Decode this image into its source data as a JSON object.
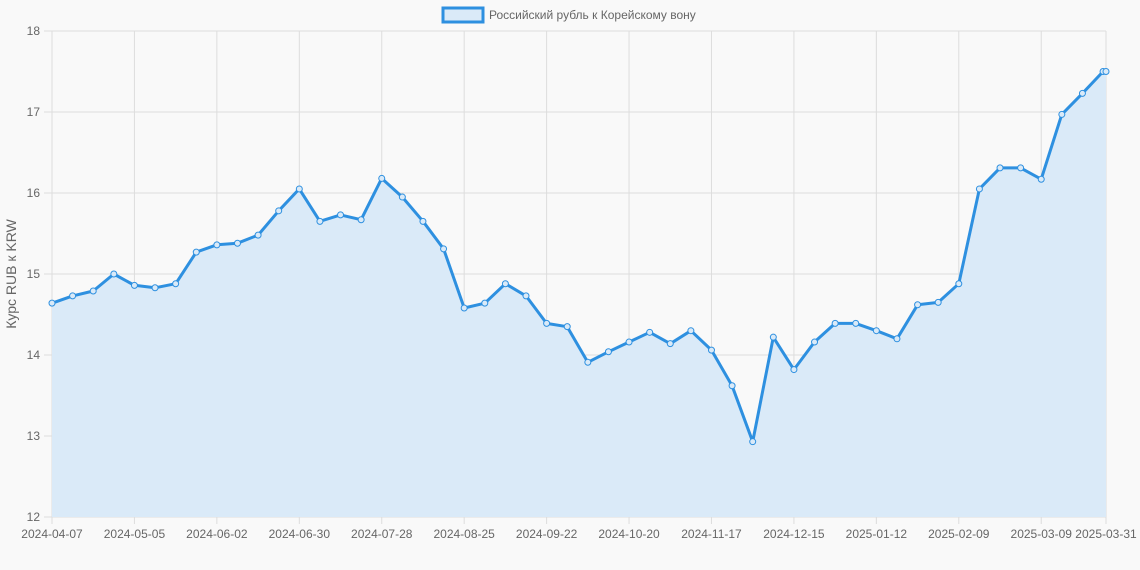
{
  "chart_data": {
    "type": "area",
    "ylabel": "Курс RUB к KRW",
    "ylim": [
      12,
      18
    ],
    "yticks": [
      12,
      13,
      14,
      15,
      16,
      17,
      18
    ],
    "grid": true,
    "legend_position": "top",
    "xtick_labels": [
      "2024-04-07",
      "2024-05-05",
      "2024-06-02",
      "2024-06-30",
      "2024-07-28",
      "2024-08-25",
      "2024-09-22",
      "2024-10-20",
      "2024-11-17",
      "2024-12-15",
      "2025-01-12",
      "2025-02-09",
      "2025-03-09",
      "2025-03-31"
    ],
    "series": [
      {
        "name": "Российский рубль к Корейскому вону",
        "color": "#2e90e0",
        "fill": "#daeaf8",
        "x": [
          "2024-04-07",
          "2024-04-14",
          "2024-04-21",
          "2024-04-28",
          "2024-05-05",
          "2024-05-12",
          "2024-05-19",
          "2024-05-26",
          "2024-06-02",
          "2024-06-09",
          "2024-06-16",
          "2024-06-23",
          "2024-06-30",
          "2024-07-07",
          "2024-07-14",
          "2024-07-21",
          "2024-07-28",
          "2024-08-04",
          "2024-08-11",
          "2024-08-18",
          "2024-08-25",
          "2024-09-01",
          "2024-09-08",
          "2024-09-15",
          "2024-09-22",
          "2024-09-29",
          "2024-10-06",
          "2024-10-13",
          "2024-10-20",
          "2024-10-27",
          "2024-11-03",
          "2024-11-10",
          "2024-11-17",
          "2024-11-24",
          "2024-12-01",
          "2024-12-08",
          "2024-12-15",
          "2024-12-22",
          "2024-12-29",
          "2025-01-05",
          "2025-01-12",
          "2025-01-19",
          "2025-01-26",
          "2025-02-02",
          "2025-02-09",
          "2025-02-16",
          "2025-02-23",
          "2025-03-02",
          "2025-03-09",
          "2025-03-16",
          "2025-03-23",
          "2025-03-30",
          "2025-03-31"
        ],
        "values": [
          14.64,
          14.73,
          14.79,
          15.0,
          14.86,
          14.83,
          14.88,
          15.27,
          15.36,
          15.38,
          15.48,
          15.78,
          16.05,
          15.65,
          15.73,
          15.67,
          16.18,
          15.95,
          15.65,
          15.31,
          14.58,
          14.64,
          14.88,
          14.73,
          14.39,
          14.35,
          13.91,
          14.04,
          14.16,
          14.28,
          14.14,
          14.3,
          14.06,
          13.62,
          12.93,
          14.22,
          13.82,
          14.16,
          14.39,
          14.39,
          14.3,
          14.2,
          14.62,
          14.65,
          14.88,
          16.05,
          16.31,
          16.31,
          16.17,
          16.97,
          17.23,
          17.5,
          17.5
        ]
      }
    ]
  }
}
